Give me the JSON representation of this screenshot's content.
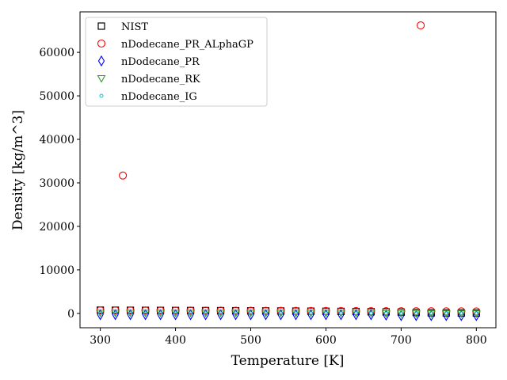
{
  "chart_data": {
    "type": "scatter",
    "title": "",
    "xlabel": "Temperature [K]",
    "ylabel": "Density [kg/m^3]",
    "xlim": [
      273,
      826
    ],
    "ylim": [
      -3300,
      69300
    ],
    "xticks": [
      300,
      400,
      500,
      600,
      700,
      800
    ],
    "yticks": [
      0,
      10000,
      20000,
      30000,
      40000,
      50000,
      60000
    ],
    "grid": false,
    "legend_position": "top-left",
    "series": [
      {
        "name": "NIST",
        "marker": "square",
        "color": "#000000",
        "points": {
          "x": [
            300,
            320,
            340,
            360,
            380,
            400,
            420,
            440,
            460,
            480,
            500,
            520,
            540,
            560,
            580,
            600,
            620,
            640,
            660,
            680,
            700,
            720,
            740,
            760,
            780,
            800
          ],
          "y": [
            745,
            731,
            717,
            702,
            687,
            672,
            656,
            640,
            623,
            606,
            588,
            569,
            549,
            528,
            505,
            481,
            454,
            424,
            389,
            347,
            290,
            200,
            120,
            95,
            85,
            78
          ]
        }
      },
      {
        "name": "nDodecane_PR_ALphaGP",
        "marker": "circle",
        "color": "#ff0000",
        "points": {
          "x": [
            300,
            320,
            330,
            340,
            360,
            380,
            400,
            420,
            440,
            460,
            480,
            500,
            520,
            540,
            560,
            580,
            600,
            620,
            640,
            660,
            680,
            700,
            720,
            726,
            740,
            760,
            780,
            800
          ],
          "y": [
            700,
            690,
            31700,
            680,
            670,
            660,
            650,
            640,
            630,
            620,
            610,
            600,
            590,
            580,
            570,
            560,
            550,
            540,
            530,
            520,
            510,
            500,
            490,
            66200,
            480,
            470,
            460,
            450
          ]
        }
      },
      {
        "name": "nDodecane_PR",
        "marker": "diamond",
        "color": "#0000ff",
        "points": {
          "x": [
            300,
            320,
            340,
            360,
            380,
            400,
            420,
            440,
            460,
            480,
            500,
            520,
            540,
            560,
            580,
            600,
            620,
            640,
            660,
            680,
            700,
            720,
            740,
            760,
            780,
            800
          ],
          "y": [
            -300,
            -300,
            -300,
            -300,
            -300,
            -300,
            -300,
            -300,
            -300,
            -300,
            -300,
            -300,
            -300,
            -300,
            -300,
            -300,
            -300,
            -300,
            -300,
            -400,
            -500,
            -500,
            -500,
            -500,
            -500,
            -500
          ]
        }
      },
      {
        "name": "nDodecane_RK",
        "marker": "triangle-down",
        "color": "#2ca02c",
        "points": {
          "x": [
            300,
            320,
            340,
            360,
            380,
            400,
            420,
            440,
            460,
            480,
            500,
            520,
            540,
            560,
            580,
            600,
            620,
            640,
            660,
            680,
            700,
            720,
            740,
            760,
            780,
            800
          ],
          "y": [
            100,
            100,
            100,
            100,
            100,
            100,
            100,
            100,
            100,
            100,
            100,
            100,
            100,
            100,
            100,
            100,
            100,
            100,
            100,
            0,
            -50,
            -50,
            -50,
            -50,
            -50,
            -50
          ]
        }
      },
      {
        "name": "nDodecane_IG",
        "marker": "small-circle",
        "color": "#17becf",
        "points": {
          "x": [
            300,
            320,
            340,
            360,
            380,
            400,
            420,
            440,
            460,
            480,
            500,
            520,
            540,
            560,
            580,
            600,
            620,
            640,
            660,
            680,
            700,
            720,
            740,
            760,
            780,
            800
          ],
          "y": [
            7,
            6,
            6,
            6,
            5,
            5,
            5,
            5,
            4,
            4,
            4,
            4,
            4,
            4,
            4,
            3,
            3,
            3,
            3,
            3,
            3,
            3,
            3,
            3,
            3,
            3
          ]
        }
      }
    ]
  }
}
